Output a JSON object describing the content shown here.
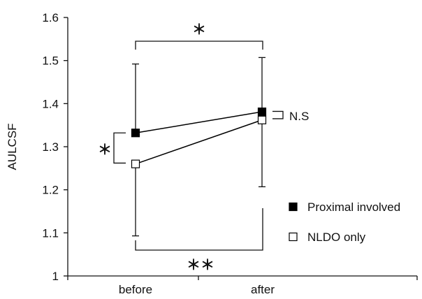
{
  "chart_data": {
    "type": "line",
    "title": "",
    "xlabel": "",
    "ylabel": "AULCSF",
    "categories": [
      "before",
      "after"
    ],
    "ylim": [
      1,
      1.6
    ],
    "yticks": [
      "1",
      "1.1",
      "1.2",
      "1.3",
      "1.4",
      "1.5",
      "1.6"
    ],
    "grid": false,
    "legend_position": "right",
    "series": [
      {
        "name": "Proximal involved",
        "marker": "filled-square",
        "color": "#000000",
        "values": [
          1.332,
          1.381
        ],
        "error_upper": [
          1.492,
          1.507
        ],
        "error_lower": [
          null,
          null
        ]
      },
      {
        "name": "NLDO only",
        "marker": "open-square",
        "color": "#000000",
        "values": [
          1.26,
          1.362
        ],
        "error_upper": [
          null,
          null
        ],
        "error_lower": [
          1.093,
          1.207
        ]
      }
    ],
    "annotations": {
      "top_bracket": "＊",
      "left_bracket": "＊",
      "bottom_bracket": "＊＊",
      "right_bracket": "N.S"
    }
  }
}
